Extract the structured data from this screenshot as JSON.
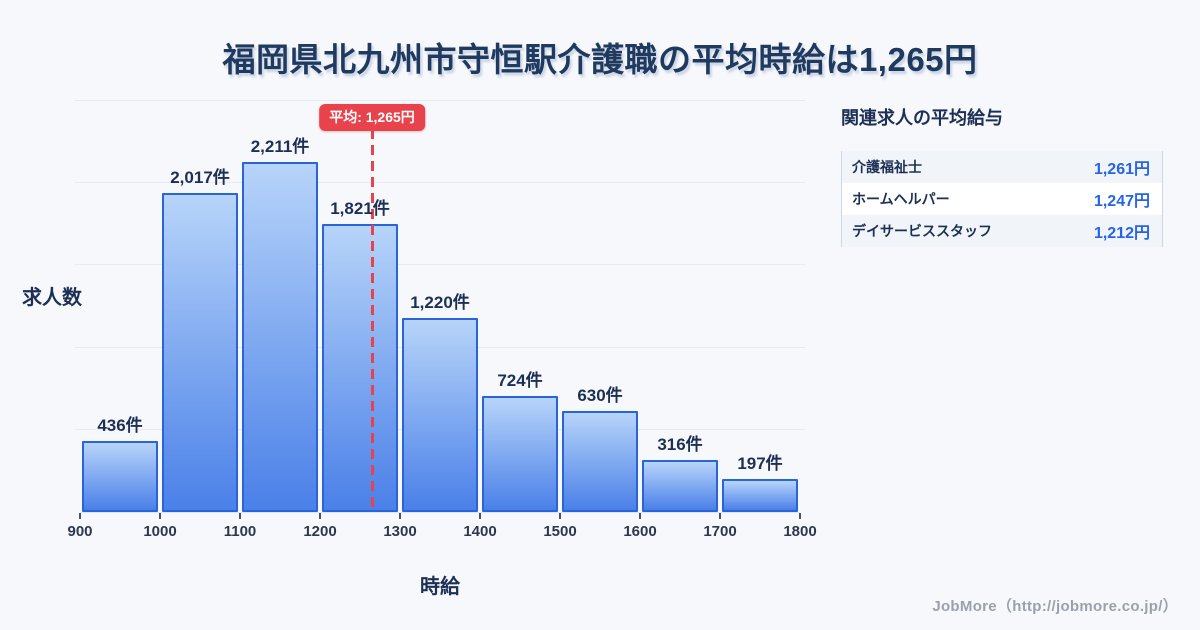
{
  "title": "福岡県北九州市守恒駅介護職の平均時給は1,265円",
  "chart_data": {
    "type": "bar",
    "title": "福岡県北九州市守恒駅介護職の平均時給は1,265円",
    "bins": [
      900,
      1000,
      1100,
      1200,
      1300,
      1400,
      1500,
      1600,
      1700,
      1800
    ],
    "categories": [
      "900-1000",
      "1000-1100",
      "1100-1200",
      "1200-1300",
      "1300-1400",
      "1400-1500",
      "1500-1600",
      "1600-1700",
      "1700-1800"
    ],
    "values": [
      436,
      2017,
      2211,
      1821,
      1220,
      724,
      630,
      316,
      197
    ],
    "value_labels": [
      "436件",
      "2,017件",
      "2,211件",
      "1,821件",
      "1,220件",
      "724件",
      "630件",
      "316件",
      "197件"
    ],
    "xlabel": "時給",
    "ylabel": "求人数",
    "xlim": [
      900,
      1800
    ],
    "ylim": [
      0,
      2500
    ],
    "y_grid_step": 500,
    "grid": true,
    "legend": "none",
    "average": {
      "value": 1265,
      "label": "平均: 1,265円"
    }
  },
  "side_panel": {
    "header": "関連求人の平均給与",
    "rows": [
      {
        "label": "介護福祉士",
        "value": "1,261円"
      },
      {
        "label": "ホームヘルパー",
        "value": "1,247円"
      },
      {
        "label": "デイサービススタッフ",
        "value": "1,212円"
      }
    ]
  },
  "footer": {
    "text": "JobMore（http://jobmore.co.jp/）"
  },
  "colors": {
    "background": "#f7f8fb",
    "title": "#1f3a5e",
    "text_navy": "#1c2f55",
    "bar_border": "#2a64da",
    "bar_gradient_top": "#b7d4f9",
    "bar_gradient_bottom": "#4a80e8",
    "accent_red": "#e8424d",
    "value_blue": "#2563eb",
    "grid": "#e8ecf2",
    "stripe": "#f1f4f8",
    "panel_border": "#ccd7e6",
    "footer": "#9ba1ac"
  }
}
